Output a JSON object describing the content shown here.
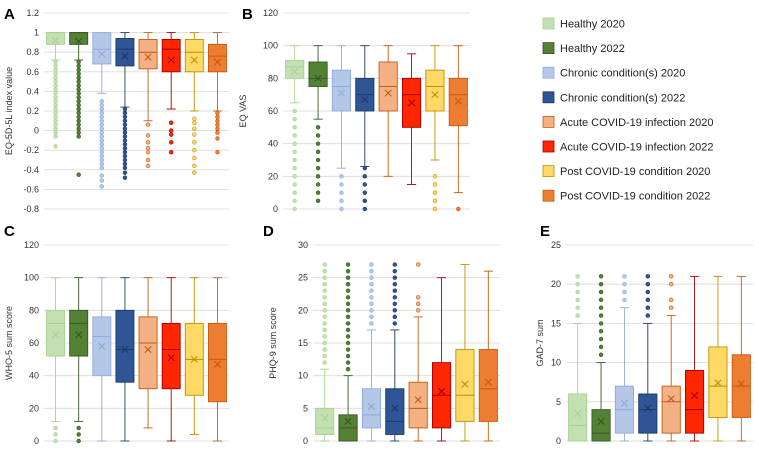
{
  "groups": [
    {
      "name": "Healthy 2020",
      "fill": "#c3e0b2",
      "stroke": "#a9d18e"
    },
    {
      "name": "Healthy 2022",
      "fill": "#548235",
      "stroke": "#375623"
    },
    {
      "name": "Chronic condition(s) 2020",
      "fill": "#b4c7e7",
      "stroke": "#8faadc"
    },
    {
      "name": "Chronic condition(s) 2022",
      "fill": "#2f5597",
      "stroke": "#1f3864"
    },
    {
      "name": "Acute COVID-19 infection 2020",
      "fill": "#f4b183",
      "stroke": "#c55a11"
    },
    {
      "name": "Acute COVID-19 infection 2022",
      "fill": "#ff2600",
      "stroke": "#a50000"
    },
    {
      "name": "Post COVID-19 condition 2020",
      "fill": "#ffd966",
      "stroke": "#bf9000"
    },
    {
      "name": "Post COVID-19 condition 2022",
      "fill": "#ed7d31",
      "stroke": "#c55a11"
    }
  ],
  "chart_data": [
    {
      "panel": "A",
      "type": "box",
      "ylabel": "EQ-5D-5L index value",
      "ylim": [
        -0.8,
        1.2
      ],
      "yticks": [
        "-0.8",
        "-0.6",
        "-0.4",
        "-0.2",
        "0",
        "0.2",
        "0.4",
        "0.6",
        "0.8",
        "1",
        "1.2"
      ],
      "boxes": [
        {
          "min": 0.72,
          "q1": 0.88,
          "median": 1.0,
          "q3": 1.0,
          "max": 1.0,
          "mean": 0.92,
          "outliers": [
            0.7,
            0.66,
            0.62,
            0.58,
            0.54,
            0.5,
            0.46,
            0.42,
            0.38,
            0.34,
            0.3,
            0.26,
            0.22,
            0.18,
            0.14,
            0.1,
            0.06,
            0.02,
            -0.02,
            -0.06,
            -0.16
          ]
        },
        {
          "min": 0.72,
          "q1": 0.88,
          "median": 1.0,
          "q3": 1.0,
          "max": 1.0,
          "mean": 0.91,
          "outliers": [
            0.7,
            0.66,
            0.62,
            0.58,
            0.54,
            0.5,
            0.46,
            0.42,
            0.38,
            0.34,
            0.3,
            0.26,
            0.22,
            0.18,
            0.14,
            0.1,
            0.06,
            0.02,
            -0.02,
            -0.06,
            -0.45
          ]
        },
        {
          "min": 0.38,
          "q1": 0.68,
          "median": 0.83,
          "q3": 1.0,
          "max": 1.0,
          "mean": 0.78,
          "outliers": [
            0.3,
            0.26,
            0.22,
            0.18,
            0.14,
            0.1,
            0.06,
            0.02,
            -0.02,
            -0.06,
            -0.1,
            -0.14,
            -0.18,
            -0.22,
            -0.26,
            -0.3,
            -0.34,
            -0.38,
            -0.46,
            -0.51,
            -0.57
          ]
        },
        {
          "min": 0.24,
          "q1": 0.66,
          "median": 0.83,
          "q3": 0.94,
          "max": 1.0,
          "mean": 0.76,
          "outliers": [
            0.22,
            0.18,
            0.14,
            0.1,
            0.06,
            0.02,
            -0.02,
            -0.06,
            -0.1,
            -0.14,
            -0.18,
            -0.22,
            -0.26,
            -0.3,
            -0.34,
            -0.38,
            -0.43,
            -0.48
          ]
        },
        {
          "min": 0.1,
          "q1": 0.63,
          "median": 0.8,
          "q3": 0.93,
          "max": 1.0,
          "mean": 0.75,
          "outliers": [
            0.06,
            -0.05,
            -0.12,
            -0.18,
            -0.22,
            -0.3,
            -0.36
          ]
        },
        {
          "min": 0.22,
          "q1": 0.6,
          "median": 0.83,
          "q3": 0.93,
          "max": 1.0,
          "mean": 0.72,
          "outliers": [
            0.08,
            0.0,
            -0.04,
            -0.12,
            -0.22
          ]
        },
        {
          "min": 0.2,
          "q1": 0.6,
          "median": 0.8,
          "q3": 0.93,
          "max": 1.0,
          "mean": 0.72,
          "outliers": [
            0.12,
            0.08,
            0.02,
            -0.04,
            -0.12,
            -0.2,
            -0.28,
            -0.36,
            -0.43
          ]
        },
        {
          "min": 0.2,
          "q1": 0.6,
          "median": 0.76,
          "q3": 0.88,
          "max": 1.0,
          "mean": 0.7,
          "outliers": [
            0.18,
            0.14,
            0.1,
            0.06,
            0.02,
            -0.02,
            -0.08,
            -0.22
          ]
        }
      ]
    },
    {
      "panel": "B",
      "type": "box",
      "ylabel": "EQ VAS",
      "ylim": [
        0,
        120
      ],
      "yticks": [
        "0",
        "20",
        "40",
        "60",
        "80",
        "100",
        "120"
      ],
      "boxes": [
        {
          "min": 65,
          "q1": 80,
          "median": 87,
          "q3": 91,
          "max": 100,
          "mean": 84,
          "outliers": [
            60,
            55,
            50,
            45,
            40,
            35,
            30,
            25,
            20,
            15,
            10,
            5,
            0
          ]
        },
        {
          "min": 55,
          "q1": 75,
          "median": 80,
          "q3": 90,
          "max": 100,
          "mean": 80,
          "outliers": [
            50,
            45,
            40,
            35,
            30,
            25,
            20,
            15,
            10,
            5
          ]
        },
        {
          "min": 25,
          "q1": 60,
          "median": 75,
          "q3": 85,
          "max": 100,
          "mean": 71,
          "outliers": [
            20,
            15,
            10,
            5,
            0
          ]
        },
        {
          "min": 26,
          "q1": 60,
          "median": 70,
          "q3": 80,
          "max": 100,
          "mean": 67,
          "outliers": [
            25,
            20,
            15,
            10,
            5,
            0
          ]
        },
        {
          "min": 20,
          "q1": 60,
          "median": 75,
          "q3": 90,
          "max": 100,
          "mean": 71,
          "outliers": []
        },
        {
          "min": 15,
          "q1": 50,
          "median": 70,
          "q3": 80,
          "max": 95,
          "mean": 65,
          "outliers": []
        },
        {
          "min": 30,
          "q1": 60,
          "median": 75,
          "q3": 85,
          "max": 100,
          "mean": 70,
          "outliers": [
            20,
            15,
            10,
            5,
            0
          ]
        },
        {
          "min": 10,
          "q1": 51,
          "median": 70,
          "q3": 80,
          "max": 100,
          "mean": 66,
          "outliers": [
            0
          ]
        }
      ]
    },
    {
      "panel": "C",
      "type": "box",
      "ylabel": "WHO-5 sum score",
      "ylim": [
        0,
        120
      ],
      "yticks": [
        "0",
        "20",
        "40",
        "60",
        "80",
        "100",
        "120"
      ],
      "boxes": [
        {
          "min": 12,
          "q1": 52,
          "median": 72,
          "q3": 80,
          "max": 100,
          "mean": 65,
          "outliers": [
            8,
            4,
            0
          ]
        },
        {
          "min": 12,
          "q1": 52,
          "median": 72,
          "q3": 80,
          "max": 100,
          "mean": 65,
          "outliers": [
            8,
            4,
            0
          ]
        },
        {
          "min": 0,
          "q1": 40,
          "median": 64,
          "q3": 76,
          "max": 100,
          "mean": 58,
          "outliers": []
        },
        {
          "min": 0,
          "q1": 36,
          "median": 56,
          "q3": 80,
          "max": 100,
          "mean": 56,
          "outliers": []
        },
        {
          "min": 8,
          "q1": 32,
          "median": 60,
          "q3": 76,
          "max": 100,
          "mean": 56,
          "outliers": []
        },
        {
          "min": 0,
          "q1": 32,
          "median": 56,
          "q3": 72,
          "max": 100,
          "mean": 51,
          "outliers": []
        },
        {
          "min": 4,
          "q1": 28,
          "median": 50,
          "q3": 72,
          "max": 100,
          "mean": 50,
          "outliers": []
        },
        {
          "min": 0,
          "q1": 24,
          "median": 50,
          "q3": 72,
          "max": 100,
          "mean": 47,
          "outliers": []
        }
      ]
    },
    {
      "panel": "D",
      "type": "box",
      "ylabel": "PHQ-9 sum score",
      "ylim": [
        0,
        30
      ],
      "yticks": [
        "0",
        "5",
        "10",
        "15",
        "20",
        "25",
        "30"
      ],
      "boxes": [
        {
          "min": 0,
          "q1": 1,
          "median": 2,
          "q3": 5,
          "max": 11,
          "mean": 3.5,
          "outliers": [
            12,
            13,
            14,
            15,
            16,
            17,
            18,
            19,
            20,
            21,
            22,
            23,
            24,
            25,
            26,
            27
          ]
        },
        {
          "min": 0,
          "q1": 0,
          "median": 2,
          "q3": 4,
          "max": 10,
          "mean": 3,
          "outliers": [
            11,
            12,
            13,
            14,
            15,
            16,
            17,
            18,
            19,
            20,
            21,
            22,
            23,
            24,
            25,
            26,
            27
          ]
        },
        {
          "min": 0,
          "q1": 2,
          "median": 4,
          "q3": 8,
          "max": 17,
          "mean": 5.3,
          "outliers": [
            18,
            19,
            20,
            21,
            22,
            23,
            24,
            25,
            26,
            27
          ]
        },
        {
          "min": 0,
          "q1": 1,
          "median": 3,
          "q3": 8,
          "max": 17,
          "mean": 5,
          "outliers": [
            18,
            19,
            20,
            21,
            22,
            23,
            24,
            25,
            26,
            27
          ]
        },
        {
          "min": 0,
          "q1": 2,
          "median": 5,
          "q3": 9,
          "max": 19,
          "mean": 6.3,
          "outliers": [
            20,
            21,
            22,
            27
          ]
        },
        {
          "min": 0,
          "q1": 2,
          "median": 7,
          "q3": 12,
          "max": 25,
          "mean": 7.6,
          "outliers": []
        },
        {
          "min": 0,
          "q1": 3,
          "median": 7,
          "q3": 14,
          "max": 27,
          "mean": 8.7,
          "outliers": []
        },
        {
          "min": 0,
          "q1": 3,
          "median": 8,
          "q3": 14,
          "max": 26,
          "mean": 9,
          "outliers": []
        }
      ]
    },
    {
      "panel": "E",
      "type": "box",
      "ylabel": "GAD-7 sum",
      "ylim": [
        0,
        25
      ],
      "yticks": [
        "0",
        "5",
        "10",
        "15",
        "20",
        "25"
      ],
      "boxes": [
        {
          "min": 0,
          "q1": 0,
          "median": 2,
          "q3": 6,
          "max": 15,
          "mean": 3.5,
          "outliers": [
            16,
            17,
            18,
            19,
            20,
            21
          ]
        },
        {
          "min": 0,
          "q1": 0,
          "median": 1,
          "q3": 4,
          "max": 10,
          "mean": 2.5,
          "outliers": [
            11,
            12,
            13,
            14,
            15,
            16,
            17,
            18,
            19,
            20,
            21
          ]
        },
        {
          "min": 0,
          "q1": 1,
          "median": 4,
          "q3": 7,
          "max": 17,
          "mean": 4.8,
          "outliers": [
            18,
            19,
            20,
            21
          ]
        },
        {
          "min": 0,
          "q1": 1,
          "median": 4,
          "q3": 6,
          "max": 15,
          "mean": 4.2,
          "outliers": [
            16,
            17,
            18,
            19,
            20,
            21
          ]
        },
        {
          "min": 0,
          "q1": 1,
          "median": 5,
          "q3": 7,
          "max": 16,
          "mean": 5.4,
          "outliers": [
            17,
            18,
            20,
            21
          ]
        },
        {
          "min": 0,
          "q1": 1,
          "median": 4,
          "q3": 9,
          "max": 21,
          "mean": 5.8,
          "outliers": []
        },
        {
          "min": 0,
          "q1": 3,
          "median": 7,
          "q3": 12,
          "max": 21,
          "mean": 7.4,
          "outliers": []
        },
        {
          "min": 0,
          "q1": 3,
          "median": 7,
          "q3": 11,
          "max": 21,
          "mean": 7.3,
          "outliers": []
        }
      ]
    }
  ]
}
